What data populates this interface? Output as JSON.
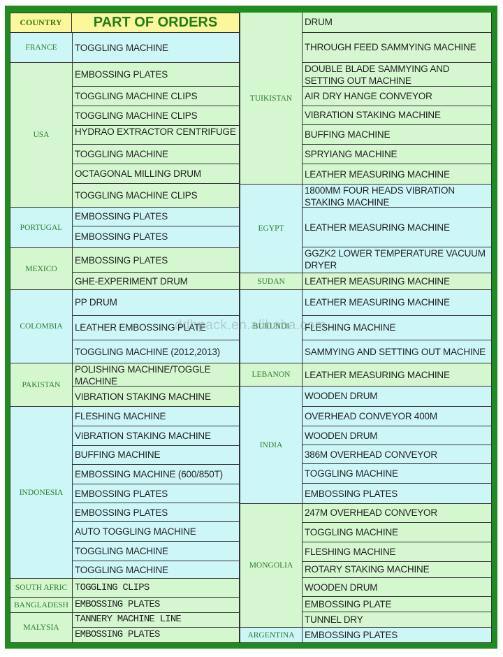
{
  "header": {
    "country_label": "COUNTRY",
    "title": "PART OF ORDERS"
  },
  "colors": {
    "frame": "#1f8c1f",
    "header_bg": "#fdf79c",
    "row_green": "#d4f7cf",
    "row_cyan": "#cdf7f7",
    "country_text": "#2f7d2f"
  },
  "left_groups": [
    {
      "country": "FRANCE",
      "color": "cyan",
      "items": [
        "TOGGLING MACHINE"
      ]
    },
    {
      "country": "USA",
      "color": "green",
      "items": [
        "EMBOSSING PLATES",
        "TOGGLING MACHINE CLIPS",
        "TOGGLING MACHINE CLIPS",
        "HYDRAO EXTRACTOR CENTRIFUGE",
        "TOGGLING MACHINE",
        "OCTAGONAL MILLING DRUM",
        "TOGGLING MACHINE CLIPS"
      ]
    },
    {
      "country": "PORTUGAL",
      "color": "cyan",
      "items": [
        "EMBOSSING PLATES",
        "EMBOSSING PLATES"
      ]
    },
    {
      "country": "MEXICO",
      "color": "green",
      "items": [
        "EMBOSSING PLATES",
        "GHE-EXPERIMENT DRUM"
      ]
    },
    {
      "country": "COLOMBIA",
      "color": "cyan",
      "items": [
        "PP DRUM",
        "LEATHER EMBOSSING PLATE",
        "TOGGLING MACHINE  (2012,2013)"
      ]
    },
    {
      "country": "PAKISTAN",
      "color": "green",
      "items": [
        "POLISHING MACHINE/TOGGLE MACHINE",
        "VIBRATION STAKING MACHINE"
      ]
    },
    {
      "country": "INDONESIA",
      "color": "cyan",
      "items": [
        "FLESHING MACHINE",
        "VIBRATION STAKING MACHINE",
        "BUFFING MACHINE",
        "EMBOSSING MACHINE (600/850T)",
        "EMBOSSING PLATES",
        "EMBOSSING PLATES",
        "AUTO TOGGLING MACHINE",
        "TOGGLING MACHINE",
        "TOGGLING MACHINE"
      ]
    },
    {
      "country": "SOUTH AFRIC",
      "color": "green",
      "items": [
        "TOGGLING CLIPS"
      ]
    },
    {
      "country": "BANGLADESH",
      "color": "green",
      "items": [
        "EMBOSSING PLATES"
      ]
    },
    {
      "country": "MALYSIA",
      "color": "green",
      "items": [
        "TANNERY MACHINE LINE",
        "EMBOSSING PLATES"
      ]
    }
  ],
  "right_groups": [
    {
      "country": "TUIKISTAN",
      "color": "green",
      "items": [
        "DRUM",
        "THROUGH FEED SAMMYING MACHINE",
        "DOUBLE BLADE SAMMYING AND SETTING OUT MACHINE",
        "AIR DRY HANGE CONVEYOR",
        "VIBRATION STAKING MACHINE",
        "BUFFING MACHINE",
        "SPRYIANG MACHINE",
        "LEATHER MEASURING MACHINE"
      ]
    },
    {
      "country": "EGYPT",
      "color": "cyan",
      "items": [
        "1800MM FOUR HEADS VIBRATION STAKING MACHINE",
        "LEATHER MEASURING MACHINE",
        "GGZK2 LOWER TEMPERATURE VACUUM DRYER"
      ]
    },
    {
      "country": "SUDAN",
      "color": "green",
      "items": [
        "LEATHER MEASURING MACHINE"
      ]
    },
    {
      "country": "BURUNDI",
      "color": "cyan",
      "items": [
        "LEATHER MEASURING MACHINE",
        "FLESHING MACHINE",
        "SAMMYING AND SETTING OUT MACHINE"
      ]
    },
    {
      "country": "LEBANON",
      "color": "green",
      "items": [
        "LEATHER MEASURING MACHINE"
      ]
    },
    {
      "country": "INDIA",
      "color": "cyan",
      "items": [
        "WOODEN DRUM",
        "OVERHEAD CONVEYOR 400M",
        "WOODEN DRUM",
        "386M OVERHEAD CONVEYOR",
        "TOGGLING MACHINE",
        " EMBOSSING PLATES"
      ]
    },
    {
      "country": "MONGOLIA",
      "color": "green",
      "items": [
        "247M OVERHEAD CONVEYOR",
        "TOGGLING MACHINE",
        "FLESHING MACHINE",
        "ROTARY STAKING MACHINE",
        "WOODEN DRUM",
        "EMBOSSING PLATE",
        "TUNNEL DRY"
      ]
    },
    {
      "country": "ARGENTINA",
      "color": "cyan",
      "items": [
        "EMBOSSING PLATES"
      ]
    }
  ],
  "watermark": "ddhpack.en.alibaba.com"
}
